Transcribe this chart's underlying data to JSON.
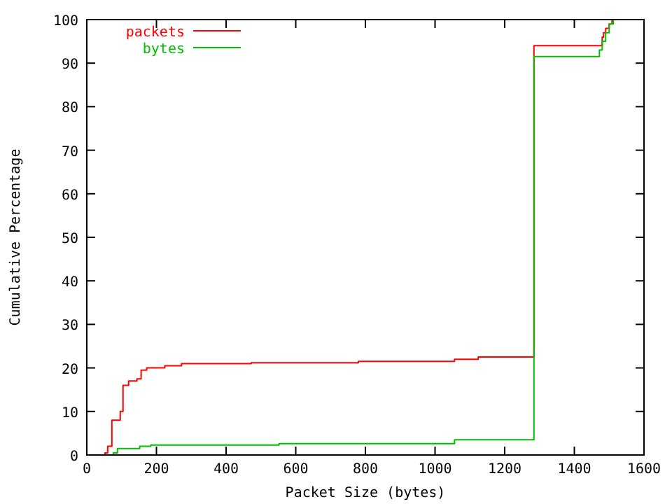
{
  "chart_data": {
    "type": "step",
    "xlabel": "Packet Size (bytes)",
    "ylabel": "Cumulative Percentage",
    "xlim": [
      0,
      1600
    ],
    "ylim": [
      0,
      100
    ],
    "xticks": [
      0,
      200,
      400,
      600,
      800,
      1000,
      1200,
      1400,
      1600
    ],
    "yticks": [
      0,
      10,
      20,
      30,
      40,
      50,
      60,
      70,
      80,
      90,
      100
    ],
    "legend": "top left",
    "grid": false,
    "line_style": "solid",
    "series": [
      {
        "name": "packets",
        "color": "#ff0000",
        "x": [
          40,
          52,
          60,
          72,
          96,
          104,
          120,
          144,
          156,
          172,
          224,
          272,
          472,
          780,
          1056,
          1124,
          1284,
          1480,
          1484,
          1490,
          1500,
          1508
        ],
        "values": [
          0,
          0.5,
          2,
          8,
          10,
          16,
          17,
          17.5,
          19.5,
          20,
          20.5,
          21,
          21.2,
          21.5,
          22,
          22.5,
          94,
          96,
          97,
          98,
          99,
          100
        ]
      },
      {
        "name": "bytes",
        "color": "#00c000",
        "x": [
          72,
          76,
          88,
          152,
          184,
          552,
          1056,
          1284,
          1472,
          1480,
          1490,
          1500,
          1512
        ],
        "values": [
          0,
          0.5,
          1.5,
          2,
          2.3,
          2.6,
          3.5,
          91.5,
          93,
          95,
          97,
          99,
          100
        ]
      }
    ]
  }
}
